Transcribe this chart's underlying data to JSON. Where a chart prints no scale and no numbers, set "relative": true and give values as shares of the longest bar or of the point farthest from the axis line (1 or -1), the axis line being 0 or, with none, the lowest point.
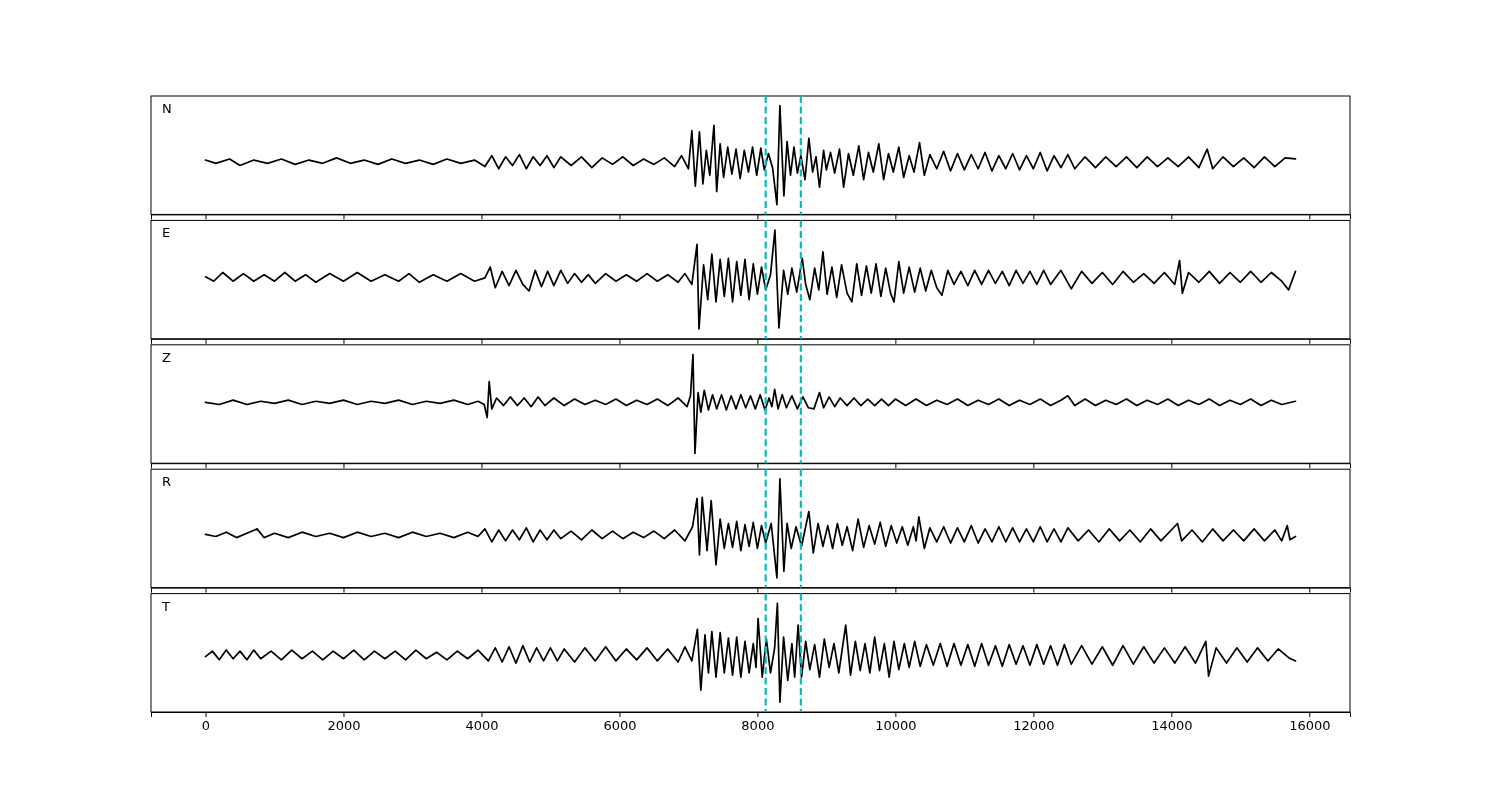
{
  "chart_data": [
    {
      "type": "line",
      "title": "N",
      "relative": true,
      "color": "#000000",
      "xlim": [
        -790,
        16590
      ],
      "xticks": [
        0,
        2000,
        4000,
        6000,
        8000,
        10000,
        12000,
        14000,
        16000
      ],
      "tick_labels": false,
      "ref_lines": [
        {
          "axis": "x",
          "value": 8120,
          "color": "#00bfbf",
          "line_style": "dashed"
        },
        {
          "axis": "x",
          "value": 8630,
          "color": "#00bfbf",
          "line_style": "dashed"
        }
      ],
      "x": [
        0,
        150,
        350,
        500,
        700,
        900,
        1100,
        1300,
        1500,
        1700,
        1900,
        2100,
        2300,
        2500,
        2700,
        2900,
        3100,
        3300,
        3500,
        3700,
        3900,
        4050,
        4150,
        4250,
        4350,
        4450,
        4550,
        4650,
        4750,
        4850,
        4950,
        5050,
        5150,
        5300,
        5450,
        5600,
        5750,
        5900,
        6050,
        6200,
        6350,
        6500,
        6650,
        6800,
        6900,
        7000,
        7050,
        7100,
        7160,
        7210,
        7260,
        7310,
        7370,
        7410,
        7460,
        7510,
        7570,
        7630,
        7690,
        7750,
        7810,
        7870,
        7930,
        7990,
        8050,
        8100,
        8160,
        8220,
        8283,
        8326,
        8384,
        8430,
        8480,
        8530,
        8580,
        8630,
        8690,
        8746,
        8800,
        8850,
        8900,
        8960,
        9000,
        9060,
        9120,
        9190,
        9250,
        9320,
        9390,
        9470,
        9540,
        9610,
        9680,
        9760,
        9830,
        9900,
        9970,
        10050,
        10120,
        10200,
        10270,
        10350,
        10420,
        10500,
        10600,
        10700,
        10800,
        10900,
        11000,
        11100,
        11200,
        11300,
        11400,
        11500,
        11600,
        11700,
        11800,
        11900,
        12000,
        12100,
        12200,
        12300,
        12400,
        12500,
        12600,
        12750,
        12900,
        13050,
        13200,
        13350,
        13500,
        13650,
        13800,
        13950,
        14100,
        14250,
        14400,
        14520,
        14600,
        14750,
        14900,
        15050,
        15200,
        15350,
        15500,
        15650,
        15800
      ],
      "values": [
        0.5,
        0.47,
        0.51,
        0.45,
        0.5,
        0.47,
        0.51,
        0.46,
        0.5,
        0.47,
        0.52,
        0.47,
        0.5,
        0.46,
        0.51,
        0.47,
        0.5,
        0.46,
        0.51,
        0.47,
        0.5,
        0.44,
        0.54,
        0.42,
        0.53,
        0.45,
        0.55,
        0.42,
        0.53,
        0.45,
        0.54,
        0.43,
        0.53,
        0.45,
        0.53,
        0.43,
        0.52,
        0.46,
        0.53,
        0.45,
        0.51,
        0.46,
        0.52,
        0.44,
        0.54,
        0.42,
        0.77,
        0.26,
        0.76,
        0.28,
        0.59,
        0.36,
        0.82,
        0.21,
        0.65,
        0.34,
        0.62,
        0.37,
        0.6,
        0.33,
        0.59,
        0.39,
        0.62,
        0.36,
        0.61,
        0.41,
        0.56,
        0.43,
        0.09,
        1.0,
        0.17,
        0.67,
        0.36,
        0.62,
        0.38,
        0.54,
        0.32,
        0.7,
        0.39,
        0.53,
        0.25,
        0.59,
        0.41,
        0.57,
        0.38,
        0.6,
        0.25,
        0.56,
        0.36,
        0.63,
        0.32,
        0.57,
        0.39,
        0.65,
        0.32,
        0.56,
        0.39,
        0.62,
        0.34,
        0.54,
        0.39,
        0.66,
        0.36,
        0.55,
        0.42,
        0.58,
        0.4,
        0.56,
        0.41,
        0.55,
        0.42,
        0.57,
        0.4,
        0.54,
        0.42,
        0.56,
        0.41,
        0.54,
        0.42,
        0.57,
        0.4,
        0.54,
        0.43,
        0.55,
        0.42,
        0.53,
        0.43,
        0.53,
        0.44,
        0.53,
        0.43,
        0.53,
        0.44,
        0.52,
        0.44,
        0.53,
        0.43,
        0.6,
        0.42,
        0.53,
        0.44,
        0.52,
        0.43,
        0.53,
        0.44,
        0.52,
        0.51
      ]
    },
    {
      "type": "line",
      "title": "E",
      "relative": true,
      "color": "#000000",
      "xlim": [
        -790,
        16590
      ],
      "xticks": [
        0,
        2000,
        4000,
        6000,
        8000,
        10000,
        12000,
        14000,
        16000
      ],
      "tick_labels": false,
      "ref_lines": [
        {
          "axis": "x",
          "value": 8120,
          "color": "#00bfbf",
          "line_style": "dashed"
        },
        {
          "axis": "x",
          "value": 8630,
          "color": "#00bfbf",
          "line_style": "dashed"
        }
      ],
      "x": [
        0,
        120,
        250,
        400,
        550,
        700,
        850,
        1000,
        1150,
        1300,
        1450,
        1600,
        1800,
        2000,
        2200,
        2400,
        2600,
        2800,
        2950,
        3100,
        3300,
        3500,
        3700,
        3900,
        4050,
        4127,
        4200,
        4300,
        4400,
        4500,
        4600,
        4690,
        4780,
        4870,
        4960,
        5050,
        5150,
        5250,
        5350,
        5450,
        5550,
        5650,
        5800,
        5950,
        6100,
        6250,
        6400,
        6550,
        6700,
        6850,
        6950,
        7050,
        7125,
        7153,
        7220,
        7280,
        7340,
        7400,
        7460,
        7520,
        7580,
        7640,
        7700,
        7760,
        7820,
        7880,
        7940,
        8000,
        8060,
        8120,
        8190,
        8254,
        8312,
        8380,
        8440,
        8500,
        8570,
        8650,
        8700,
        8760,
        8830,
        8890,
        8950,
        9010,
        9080,
        9150,
        9220,
        9300,
        9370,
        9440,
        9510,
        9580,
        9650,
        9720,
        9790,
        9860,
        9930,
        9980,
        10050,
        10120,
        10200,
        10280,
        10360,
        10440,
        10520,
        10600,
        10675,
        10760,
        10850,
        10950,
        11050,
        11150,
        11250,
        11350,
        11450,
        11550,
        11650,
        11750,
        11850,
        11950,
        12050,
        12150,
        12250,
        12400,
        12550,
        12700,
        12850,
        13000,
        13150,
        13300,
        13450,
        13600,
        13750,
        13900,
        14050,
        14120,
        14160,
        14250,
        14400,
        14550,
        14700,
        14850,
        15000,
        15150,
        15300,
        15450,
        15600,
        15700,
        15800
      ],
      "values": [
        0.57,
        0.53,
        0.61,
        0.53,
        0.6,
        0.53,
        0.59,
        0.53,
        0.61,
        0.53,
        0.59,
        0.52,
        0.6,
        0.53,
        0.61,
        0.53,
        0.59,
        0.53,
        0.6,
        0.52,
        0.59,
        0.53,
        0.6,
        0.53,
        0.56,
        0.66,
        0.47,
        0.62,
        0.49,
        0.63,
        0.5,
        0.44,
        0.63,
        0.48,
        0.62,
        0.49,
        0.63,
        0.51,
        0.6,
        0.52,
        0.59,
        0.51,
        0.6,
        0.53,
        0.59,
        0.53,
        0.6,
        0.53,
        0.59,
        0.52,
        0.6,
        0.5,
        0.87,
        0.09,
        0.68,
        0.36,
        0.78,
        0.34,
        0.73,
        0.39,
        0.74,
        0.34,
        0.71,
        0.4,
        0.73,
        0.36,
        0.69,
        0.41,
        0.66,
        0.45,
        0.59,
        1.0,
        0.1,
        0.63,
        0.41,
        0.65,
        0.43,
        0.74,
        0.5,
        0.36,
        0.65,
        0.45,
        0.8,
        0.41,
        0.66,
        0.38,
        0.68,
        0.42,
        0.34,
        0.69,
        0.4,
        0.67,
        0.42,
        0.69,
        0.39,
        0.65,
        0.42,
        0.34,
        0.71,
        0.42,
        0.66,
        0.43,
        0.65,
        0.44,
        0.63,
        0.47,
        0.4,
        0.63,
        0.5,
        0.62,
        0.49,
        0.63,
        0.5,
        0.63,
        0.51,
        0.62,
        0.49,
        0.63,
        0.51,
        0.62,
        0.5,
        0.63,
        0.5,
        0.63,
        0.46,
        0.62,
        0.51,
        0.61,
        0.5,
        0.62,
        0.52,
        0.6,
        0.51,
        0.61,
        0.5,
        0.72,
        0.42,
        0.61,
        0.52,
        0.62,
        0.51,
        0.61,
        0.52,
        0.62,
        0.52,
        0.61,
        0.53,
        0.45,
        0.62
      ]
    },
    {
      "type": "line",
      "title": "Z",
      "relative": true,
      "color": "#000000",
      "xlim": [
        -790,
        16590
      ],
      "xticks": [
        0,
        2000,
        4000,
        6000,
        8000,
        10000,
        12000,
        14000,
        16000
      ],
      "tick_labels": false,
      "ref_lines": [
        {
          "axis": "x",
          "value": 8120,
          "color": "#00bfbf",
          "line_style": "dashed"
        },
        {
          "axis": "x",
          "value": 8630,
          "color": "#00bfbf",
          "line_style": "dashed"
        }
      ],
      "x": [
        0,
        200,
        400,
        600,
        800,
        1000,
        1200,
        1400,
        1600,
        1800,
        2000,
        2200,
        2400,
        2600,
        2800,
        3000,
        3200,
        3400,
        3600,
        3800,
        3950,
        4040,
        4083,
        4112,
        4150,
        4220,
        4320,
        4420,
        4520,
        4620,
        4720,
        4820,
        4920,
        5050,
        5200,
        5350,
        5500,
        5650,
        5800,
        5950,
        6100,
        6250,
        6400,
        6550,
        6700,
        6850,
        6980,
        7030,
        7066,
        7095,
        7140,
        7180,
        7230,
        7290,
        7350,
        7410,
        7480,
        7550,
        7620,
        7690,
        7760,
        7830,
        7900,
        7970,
        8040,
        8110,
        8170,
        8210,
        8250,
        8300,
        8360,
        8420,
        8500,
        8580,
        8660,
        8740,
        8820,
        8900,
        8960,
        9040,
        9120,
        9200,
        9300,
        9400,
        9500,
        9600,
        9700,
        9800,
        9900,
        10000,
        10150,
        10300,
        10450,
        10600,
        10750,
        10900,
        11050,
        11200,
        11350,
        11500,
        11650,
        11800,
        11950,
        12100,
        12250,
        12400,
        12500,
        12600,
        12750,
        12900,
        13050,
        13200,
        13350,
        13500,
        13650,
        13800,
        13950,
        14100,
        14250,
        14400,
        14550,
        14700,
        14850,
        15000,
        15150,
        15300,
        15450,
        15600,
        15800
      ],
      "values": [
        0.56,
        0.54,
        0.58,
        0.54,
        0.57,
        0.55,
        0.58,
        0.54,
        0.57,
        0.55,
        0.58,
        0.54,
        0.57,
        0.55,
        0.58,
        0.54,
        0.57,
        0.55,
        0.58,
        0.54,
        0.57,
        0.54,
        0.42,
        0.75,
        0.5,
        0.6,
        0.53,
        0.61,
        0.53,
        0.6,
        0.52,
        0.61,
        0.53,
        0.6,
        0.53,
        0.59,
        0.54,
        0.58,
        0.54,
        0.59,
        0.53,
        0.58,
        0.54,
        0.59,
        0.53,
        0.6,
        0.52,
        0.62,
        1.0,
        0.09,
        0.65,
        0.47,
        0.67,
        0.49,
        0.63,
        0.5,
        0.63,
        0.49,
        0.62,
        0.5,
        0.63,
        0.51,
        0.62,
        0.5,
        0.63,
        0.49,
        0.6,
        0.52,
        0.68,
        0.5,
        0.63,
        0.51,
        0.62,
        0.5,
        0.61,
        0.51,
        0.5,
        0.65,
        0.51,
        0.61,
        0.52,
        0.6,
        0.53,
        0.6,
        0.53,
        0.59,
        0.53,
        0.59,
        0.53,
        0.59,
        0.53,
        0.59,
        0.53,
        0.58,
        0.54,
        0.59,
        0.53,
        0.58,
        0.54,
        0.59,
        0.53,
        0.58,
        0.54,
        0.59,
        0.53,
        0.58,
        0.62,
        0.53,
        0.59,
        0.53,
        0.58,
        0.54,
        0.59,
        0.53,
        0.58,
        0.54,
        0.59,
        0.53,
        0.58,
        0.54,
        0.59,
        0.53,
        0.58,
        0.54,
        0.59,
        0.53,
        0.58,
        0.54,
        0.57
      ]
    },
    {
      "type": "line",
      "title": "R",
      "relative": true,
      "color": "#000000",
      "xlim": [
        -790,
        16590
      ],
      "xticks": [
        0,
        2000,
        4000,
        6000,
        8000,
        10000,
        12000,
        14000,
        16000
      ],
      "tick_labels": false,
      "ref_lines": [
        {
          "axis": "x",
          "value": 8120,
          "color": "#00bfbf",
          "line_style": "dashed"
        },
        {
          "axis": "x",
          "value": 8630,
          "color": "#00bfbf",
          "line_style": "dashed"
        }
      ],
      "x": [
        0,
        150,
        300,
        450,
        600,
        750,
        850,
        1000,
        1200,
        1400,
        1600,
        1800,
        2000,
        2200,
        2400,
        2600,
        2800,
        3000,
        3200,
        3400,
        3600,
        3800,
        3950,
        4050,
        4150,
        4250,
        4350,
        4450,
        4550,
        4650,
        4750,
        4850,
        4950,
        5050,
        5150,
        5300,
        5450,
        5600,
        5750,
        5900,
        6050,
        6200,
        6350,
        6500,
        6650,
        6800,
        6950,
        7060,
        7125,
        7160,
        7200,
        7270,
        7330,
        7400,
        7460,
        7520,
        7580,
        7640,
        7700,
        7760,
        7820,
        7880,
        7940,
        8000,
        8060,
        8120,
        8200,
        8283,
        8326,
        8384,
        8430,
        8490,
        8560,
        8640,
        8746,
        8810,
        8880,
        8950,
        9020,
        9090,
        9160,
        9230,
        9300,
        9380,
        9460,
        9540,
        9620,
        9700,
        9780,
        9860,
        9940,
        10020,
        10100,
        10180,
        10260,
        10300,
        10340,
        10420,
        10500,
        10600,
        10700,
        10800,
        10900,
        11000,
        11100,
        11200,
        11300,
        11400,
        11500,
        11600,
        11700,
        11800,
        11900,
        12000,
        12100,
        12200,
        12300,
        12400,
        12500,
        12650,
        12800,
        12950,
        13100,
        13250,
        13400,
        13550,
        13700,
        13850,
        14000,
        14090,
        14150,
        14300,
        14450,
        14600,
        14750,
        14900,
        15050,
        15200,
        15350,
        15500,
        15600,
        15680,
        15720,
        15800
      ],
      "values": [
        0.49,
        0.47,
        0.51,
        0.46,
        0.5,
        0.54,
        0.46,
        0.5,
        0.46,
        0.51,
        0.47,
        0.5,
        0.46,
        0.51,
        0.47,
        0.5,
        0.46,
        0.51,
        0.47,
        0.5,
        0.46,
        0.51,
        0.47,
        0.54,
        0.42,
        0.53,
        0.43,
        0.53,
        0.44,
        0.55,
        0.42,
        0.53,
        0.44,
        0.53,
        0.45,
        0.52,
        0.44,
        0.53,
        0.45,
        0.52,
        0.45,
        0.51,
        0.46,
        0.52,
        0.45,
        0.53,
        0.43,
        0.56,
        0.82,
        0.3,
        0.83,
        0.34,
        0.8,
        0.21,
        0.63,
        0.36,
        0.59,
        0.37,
        0.61,
        0.34,
        0.58,
        0.38,
        0.6,
        0.36,
        0.57,
        0.41,
        0.59,
        0.09,
        1.0,
        0.15,
        0.59,
        0.36,
        0.56,
        0.38,
        0.7,
        0.32,
        0.59,
        0.38,
        0.57,
        0.36,
        0.59,
        0.39,
        0.56,
        0.34,
        0.63,
        0.37,
        0.57,
        0.4,
        0.6,
        0.38,
        0.57,
        0.41,
        0.56,
        0.39,
        0.56,
        0.43,
        0.65,
        0.36,
        0.55,
        0.42,
        0.56,
        0.41,
        0.55,
        0.42,
        0.57,
        0.41,
        0.54,
        0.42,
        0.56,
        0.42,
        0.55,
        0.42,
        0.54,
        0.42,
        0.56,
        0.42,
        0.54,
        0.42,
        0.55,
        0.43,
        0.53,
        0.42,
        0.54,
        0.43,
        0.53,
        0.42,
        0.54,
        0.43,
        0.53,
        0.59,
        0.43,
        0.53,
        0.42,
        0.54,
        0.43,
        0.53,
        0.43,
        0.54,
        0.43,
        0.53,
        0.43,
        0.57,
        0.44,
        0.47
      ]
    },
    {
      "type": "line",
      "title": "T",
      "relative": true,
      "color": "#000000",
      "xlim": [
        -790,
        16590
      ],
      "xticks": [
        0,
        2000,
        4000,
        6000,
        8000,
        10000,
        12000,
        14000,
        16000
      ],
      "tick_labels": "x",
      "ref_lines": [
        {
          "axis": "x",
          "value": 8120,
          "color": "#00bfbf",
          "line_style": "dashed"
        },
        {
          "axis": "x",
          "value": 8630,
          "color": "#00bfbf",
          "line_style": "dashed"
        }
      ],
      "x": [
        0,
        100,
        200,
        300,
        400,
        500,
        600,
        700,
        800,
        950,
        1100,
        1250,
        1400,
        1550,
        1700,
        1850,
        2000,
        2150,
        2300,
        2450,
        2600,
        2750,
        2900,
        3050,
        3200,
        3350,
        3500,
        3650,
        3800,
        3950,
        4100,
        4200,
        4300,
        4400,
        4500,
        4600,
        4700,
        4800,
        4900,
        5000,
        5100,
        5200,
        5350,
        5500,
        5650,
        5800,
        5950,
        6100,
        6250,
        6400,
        6550,
        6700,
        6850,
        6950,
        7050,
        7130,
        7180,
        7240,
        7290,
        7340,
        7400,
        7460,
        7520,
        7580,
        7640,
        7700,
        7760,
        7820,
        7880,
        7940,
        7980,
        8010,
        8070,
        8130,
        8190,
        8250,
        8290,
        8326,
        8380,
        8440,
        8500,
        8540,
        8590,
        8640,
        8700,
        8760,
        8830,
        8900,
        8970,
        9040,
        9110,
        9180,
        9280,
        9350,
        9420,
        9490,
        9560,
        9630,
        9700,
        9770,
        9840,
        9910,
        9980,
        10050,
        10130,
        10200,
        10280,
        10360,
        10450,
        10550,
        10650,
        10750,
        10850,
        10950,
        11050,
        11150,
        11250,
        11350,
        11450,
        11550,
        11650,
        11750,
        11850,
        11950,
        12050,
        12150,
        12250,
        12350,
        12450,
        12550,
        12700,
        12850,
        13000,
        13150,
        13300,
        13450,
        13600,
        13750,
        13900,
        14050,
        14200,
        14350,
        14500,
        14540,
        14650,
        14800,
        14950,
        15100,
        15250,
        15400,
        15550,
        15700,
        15800
      ],
      "values": [
        0.51,
        0.56,
        0.48,
        0.57,
        0.49,
        0.56,
        0.48,
        0.57,
        0.49,
        0.56,
        0.48,
        0.57,
        0.49,
        0.56,
        0.48,
        0.56,
        0.49,
        0.57,
        0.48,
        0.56,
        0.49,
        0.56,
        0.48,
        0.57,
        0.49,
        0.55,
        0.48,
        0.56,
        0.49,
        0.57,
        0.47,
        0.59,
        0.46,
        0.6,
        0.45,
        0.61,
        0.46,
        0.59,
        0.47,
        0.59,
        0.47,
        0.58,
        0.46,
        0.59,
        0.47,
        0.6,
        0.47,
        0.58,
        0.48,
        0.59,
        0.47,
        0.58,
        0.46,
        0.6,
        0.47,
        0.76,
        0.2,
        0.71,
        0.36,
        0.74,
        0.32,
        0.73,
        0.36,
        0.68,
        0.34,
        0.69,
        0.32,
        0.65,
        0.36,
        0.63,
        0.41,
        0.86,
        0.32,
        0.67,
        0.36,
        0.59,
        1.0,
        0.09,
        0.69,
        0.29,
        0.63,
        0.32,
        0.8,
        0.32,
        0.65,
        0.39,
        0.62,
        0.32,
        0.67,
        0.41,
        0.63,
        0.36,
        0.8,
        0.34,
        0.65,
        0.38,
        0.63,
        0.36,
        0.69,
        0.38,
        0.63,
        0.32,
        0.65,
        0.39,
        0.63,
        0.41,
        0.65,
        0.42,
        0.62,
        0.43,
        0.63,
        0.42,
        0.63,
        0.43,
        0.62,
        0.42,
        0.63,
        0.43,
        0.61,
        0.42,
        0.62,
        0.44,
        0.61,
        0.43,
        0.62,
        0.44,
        0.61,
        0.43,
        0.62,
        0.44,
        0.61,
        0.44,
        0.6,
        0.43,
        0.61,
        0.44,
        0.6,
        0.45,
        0.59,
        0.45,
        0.6,
        0.45,
        0.65,
        0.33,
        0.59,
        0.45,
        0.59,
        0.46,
        0.59,
        0.47,
        0.58,
        0.5,
        0.47
      ]
    }
  ]
}
